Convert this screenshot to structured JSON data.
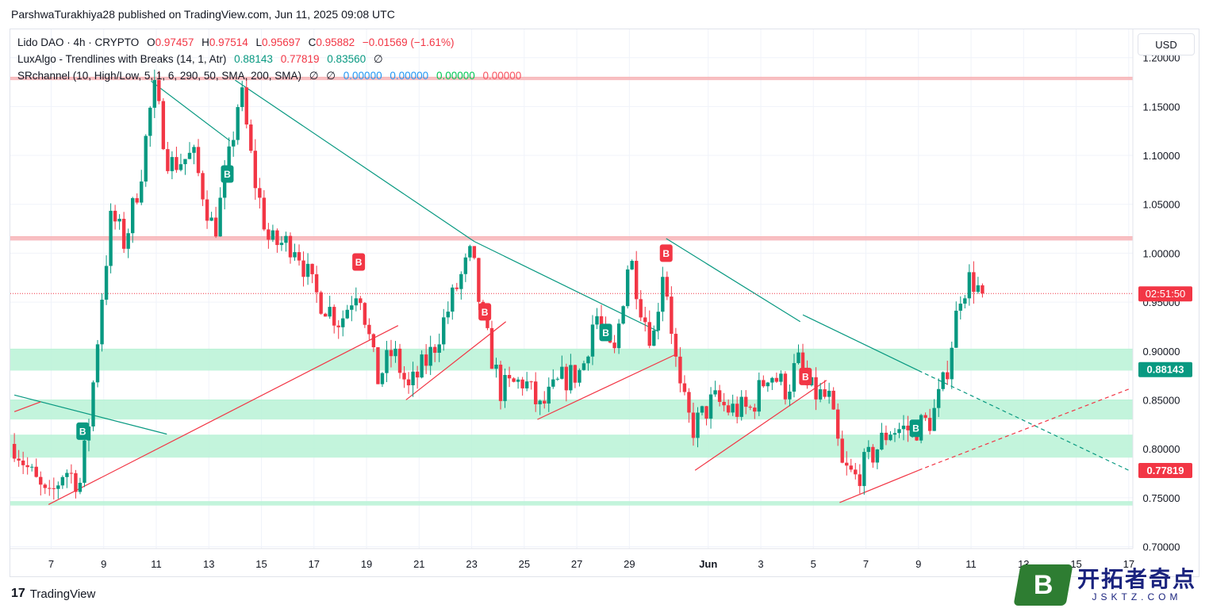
{
  "header": {
    "publisher_line": "ParshwaTurakhiya28 published on TradingView.com, Jun 11, 2025 09:08 UTC"
  },
  "legend": {
    "symbol": "Lido DAO · 4h · CRYPTO",
    "open_label": "O",
    "open": "0.97457",
    "high_label": "H",
    "high": "0.97514",
    "low_label": "L",
    "low": "0.95697",
    "close_label": "C",
    "close": "0.95882",
    "change": "−0.01569 (−1.61%)",
    "lux_name": "LuxAlgo - Trendlines with Breaks (14, 1, Atr)",
    "lux_v1": "0.88143",
    "lux_v2": "0.77819",
    "lux_v3": "0.83560",
    "lux_symbol": "∅",
    "sr_name": "SRchannel (10, High/Low, 5, 1, 6, 290, 50, SMA, 200, SMA)",
    "sr_sym1": "∅",
    "sr_sym2": "∅",
    "sr_v1": "0.00000",
    "sr_v2": "0.00000",
    "sr_v3": "0.00000",
    "sr_v4": "0.00000"
  },
  "currency_button": "USD",
  "footer": {
    "brand": "TradingView",
    "brand_mark": "17"
  },
  "watermark": {
    "letter": "B",
    "cn": "开拓者奇点",
    "url": "JSKTZ.COM"
  },
  "colors": {
    "up": "#089981",
    "down": "#f23645",
    "zone": "#b8f2d6",
    "resistance": "#f7b4b7"
  },
  "chart_data": {
    "type": "candlestick",
    "yrange": [
      0.7,
      1.2
    ],
    "y_ticks": [
      "0.70000",
      "0.75000",
      "0.80000",
      "0.85000",
      "0.90000",
      "0.95000",
      "1.00000",
      "1.05000",
      "1.10000",
      "1.15000",
      "1.20000"
    ],
    "x_ticks": [
      "7",
      "9",
      "11",
      "13",
      "15",
      "17",
      "19",
      "21",
      "23",
      "25",
      "27",
      "29",
      "Jun",
      "3",
      "5",
      "7",
      "9",
      "11",
      "13",
      "15",
      "17"
    ],
    "x_tick_days": [
      7,
      9,
      11,
      13,
      15,
      17,
      19,
      21,
      23,
      25,
      27,
      29,
      32,
      34,
      36,
      38,
      40,
      42,
      44,
      46,
      48
    ],
    "last_price": 0.95882,
    "countdown": "02:51:50",
    "price_labels": [
      {
        "value": 0.88143,
        "text": "0.88143",
        "color": "#089981"
      },
      {
        "value": 0.77819,
        "text": "0.77819",
        "color": "#f23645"
      }
    ],
    "sr_zones": [
      {
        "lo": 1.177,
        "hi": 1.18,
        "color": "#f7b4b7"
      },
      {
        "lo": 1.013,
        "hi": 1.017,
        "color": "#f7b4b7"
      },
      {
        "lo": 0.88,
        "hi": 0.902,
        "color": "#b8f2d6"
      },
      {
        "lo": 0.83,
        "hi": 0.85,
        "color": "#b8f2d6"
      },
      {
        "lo": 0.791,
        "hi": 0.814,
        "color": "#b8f2d6"
      },
      {
        "lo": 0.742,
        "hi": 0.746,
        "color": "#b8f2d6"
      }
    ],
    "keypoints": [
      [
        5.6,
        0.805
      ],
      [
        6.2,
        0.775
      ],
      [
        6.9,
        0.745
      ],
      [
        7.5,
        0.78
      ],
      [
        8.1,
        0.765
      ],
      [
        8.5,
        0.84
      ],
      [
        8.9,
        0.95
      ],
      [
        9.3,
        1.04
      ],
      [
        9.8,
        1.01
      ],
      [
        10.4,
        1.08
      ],
      [
        10.9,
        1.17
      ],
      [
        11.5,
        1.09
      ],
      [
        12.4,
        1.1
      ],
      [
        13.2,
        1.02
      ],
      [
        13.8,
        1.1
      ],
      [
        14.2,
        1.17
      ],
      [
        14.7,
        1.08
      ],
      [
        15.3,
        1.01
      ],
      [
        16.3,
        1.01
      ],
      [
        17.0,
        0.96
      ],
      [
        18.0,
        0.93
      ],
      [
        18.7,
        0.97
      ],
      [
        19.4,
        0.87
      ],
      [
        20.0,
        0.9
      ],
      [
        20.6,
        0.86
      ],
      [
        21.5,
        0.9
      ],
      [
        22.5,
        0.97
      ],
      [
        23.0,
        1.0
      ],
      [
        23.4,
        0.93
      ],
      [
        24.1,
        0.86
      ],
      [
        25.0,
        0.87
      ],
      [
        25.6,
        0.84
      ],
      [
        26.4,
        0.87
      ],
      [
        27.2,
        0.88
      ],
      [
        27.7,
        0.94
      ],
      [
        28.4,
        0.89
      ],
      [
        29.0,
        1.0
      ],
      [
        29.5,
        0.94
      ],
      [
        29.9,
        0.91
      ],
      [
        30.3,
        0.99
      ],
      [
        30.9,
        0.86
      ],
      [
        31.4,
        0.82
      ],
      [
        32.2,
        0.85
      ],
      [
        32.8,
        0.84
      ],
      [
        33.6,
        0.84
      ],
      [
        34.3,
        0.88
      ],
      [
        35.0,
        0.86
      ],
      [
        35.4,
        0.89
      ],
      [
        35.8,
        0.86
      ],
      [
        36.6,
        0.85
      ],
      [
        37.1,
        0.78
      ],
      [
        37.6,
        0.77
      ],
      [
        38.4,
        0.8
      ],
      [
        38.9,
        0.82
      ],
      [
        39.8,
        0.82
      ],
      [
        40.5,
        0.83
      ],
      [
        41.0,
        0.87
      ],
      [
        41.6,
        0.96
      ],
      [
        42.0,
        0.975
      ],
      [
        42.4,
        0.958
      ]
    ],
    "trendlines": [
      {
        "x1": 5.6,
        "y1": 0.855,
        "x2": 11.4,
        "y2": 0.815,
        "color": "#089981"
      },
      {
        "x1": 10.8,
        "y1": 1.176,
        "x2": 13.8,
        "y2": 1.115,
        "color": "#089981"
      },
      {
        "x1": 14.0,
        "y1": 1.177,
        "x2": 23.1,
        "y2": 1.012,
        "color": "#089981"
      },
      {
        "x1": 23.1,
        "y1": 1.012,
        "x2": 30.1,
        "y2": 0.92,
        "color": "#089981"
      },
      {
        "x1": 30.4,
        "y1": 1.015,
        "x2": 35.5,
        "y2": 0.93,
        "color": "#089981"
      },
      {
        "x1": 35.6,
        "y1": 0.937,
        "x2": 40.0,
        "y2": 0.88,
        "color": "#089981"
      },
      {
        "x1": 40.0,
        "y1": 0.88,
        "x2": 48.0,
        "y2": 0.778,
        "color": "#089981",
        "dashed": true
      },
      {
        "x1": 5.6,
        "y1": 0.838,
        "x2": 6.6,
        "y2": 0.848,
        "color": "#f23645"
      },
      {
        "x1": 6.9,
        "y1": 0.743,
        "x2": 20.2,
        "y2": 0.926,
        "color": "#f23645"
      },
      {
        "x1": 20.5,
        "y1": 0.85,
        "x2": 24.3,
        "y2": 0.93,
        "color": "#f23645"
      },
      {
        "x1": 25.5,
        "y1": 0.83,
        "x2": 30.8,
        "y2": 0.897,
        "color": "#f23645"
      },
      {
        "x1": 31.5,
        "y1": 0.778,
        "x2": 36.5,
        "y2": 0.87,
        "color": "#f23645"
      },
      {
        "x1": 37.0,
        "y1": 0.745,
        "x2": 40.0,
        "y2": 0.778,
        "color": "#f23645"
      },
      {
        "x1": 40.0,
        "y1": 0.778,
        "x2": 48.0,
        "y2": 0.861,
        "color": "#f23645",
        "dashed": true
      }
    ],
    "signals": [
      {
        "x": 8.2,
        "y": 0.818,
        "label": "B",
        "kind": "up"
      },
      {
        "x": 13.7,
        "y": 1.081,
        "label": "B",
        "kind": "up"
      },
      {
        "x": 18.7,
        "y": 0.991,
        "label": "B",
        "kind": "down"
      },
      {
        "x": 23.5,
        "y": 0.94,
        "label": "B",
        "kind": "down"
      },
      {
        "x": 28.1,
        "y": 0.919,
        "label": "B",
        "kind": "up"
      },
      {
        "x": 30.4,
        "y": 1.0,
        "label": "B",
        "kind": "down"
      },
      {
        "x": 35.7,
        "y": 0.874,
        "label": "B",
        "kind": "down"
      },
      {
        "x": 39.9,
        "y": 0.821,
        "label": "B",
        "kind": "up"
      }
    ]
  }
}
